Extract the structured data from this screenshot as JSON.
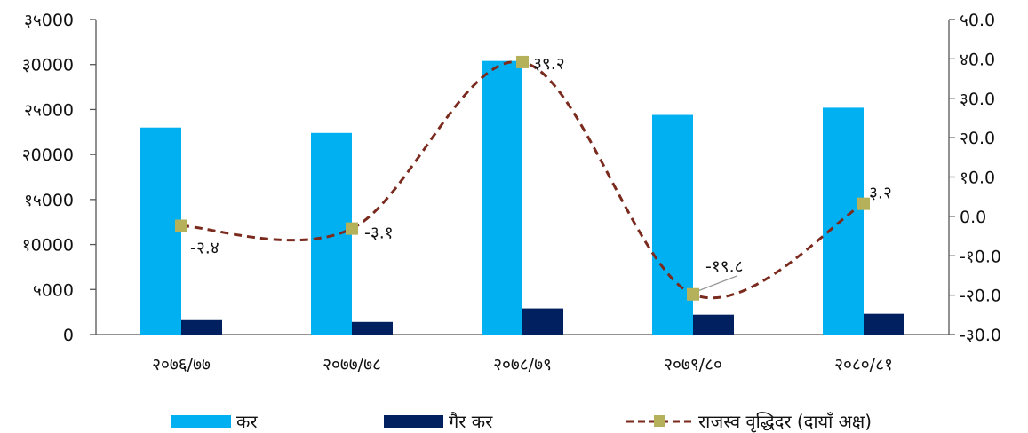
{
  "chart_data": {
    "type": "bar",
    "categories": [
      "२०७६/७७",
      "२०७७/७८",
      "२०७८/७९",
      "२०७९/८०",
      "२०८०/८१"
    ],
    "series": [
      {
        "name": "कर",
        "axis": "left",
        "values": [
          23000,
          22400,
          30400,
          24400,
          25200
        ]
      },
      {
        "name": "गैर कर",
        "axis": "left",
        "values": [
          1600,
          1400,
          2900,
          2200,
          2300
        ]
      },
      {
        "name": "राजस्व वृद्धिदर (दायाँ अक्ष)",
        "axis": "right",
        "type": "line",
        "values": [
          -2.4,
          -3.1,
          39.2,
          -19.8,
          3.2
        ],
        "labels": [
          "-२.४",
          "-३.१",
          "३९.२",
          "-१९.८",
          "३.२"
        ]
      }
    ],
    "left_axis": {
      "ylim": [
        0,
        35000
      ],
      "ticks": [
        "0",
        "५000",
        "१0000",
        "१५000",
        "२0000",
        "२५000",
        "३0000",
        "३५000"
      ]
    },
    "right_axis": {
      "ylim": [
        -30,
        50
      ],
      "ticks": [
        "-३0.0",
        "-२0.0",
        "-१0.0",
        "0.0",
        "१0.0",
        "२0.0",
        "३0.0",
        "४0.0",
        "५0.0"
      ]
    },
    "legend_position": "bottom",
    "colors": {
      "kar": "#00b0f0",
      "gair_kar": "#002060",
      "line": "#7b2a1e",
      "marker": "#b5b05a"
    }
  }
}
